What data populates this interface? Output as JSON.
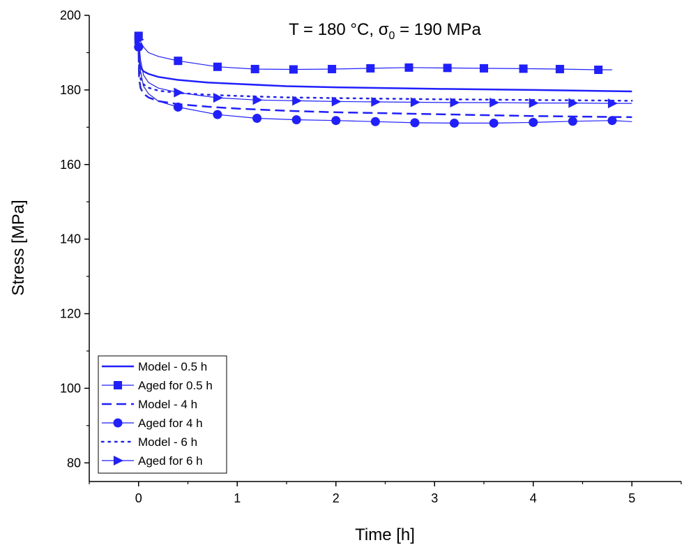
{
  "chart_data": {
    "type": "line",
    "title": {
      "prefix": "T = 180 °C, ",
      "sigma": "σ",
      "subscript": "0",
      "suffix": " = 190 MPa"
    },
    "xlabel": "Time [h]",
    "ylabel": "Stress [MPa]",
    "xlim": [
      -0.5,
      5.5
    ],
    "ylim": [
      75,
      200
    ],
    "xticks": [
      0,
      1,
      2,
      3,
      4,
      5
    ],
    "yticks": [
      80,
      100,
      120,
      140,
      160,
      180,
      200
    ],
    "legend_position": "bottom-left",
    "series_color": "#1f1fff",
    "series": [
      {
        "name": "Model - 0.5 h",
        "kind": "model",
        "style": "solid",
        "points": [
          [
            0,
            194
          ],
          [
            0.005,
            188
          ],
          [
            0.02,
            186
          ],
          [
            0.05,
            185
          ],
          [
            0.1,
            184.3
          ],
          [
            0.2,
            183.5
          ],
          [
            0.4,
            182.7
          ],
          [
            0.7,
            182
          ],
          [
            1,
            181.6
          ],
          [
            1.5,
            181
          ],
          [
            2,
            180.7
          ],
          [
            3,
            180.3
          ],
          [
            4,
            180
          ],
          [
            5,
            179.6
          ]
        ]
      },
      {
        "name": "Aged for 0.5 h",
        "kind": "data",
        "marker": "square",
        "points": [
          [
            0,
            194.5
          ],
          [
            0.02,
            193
          ],
          [
            0.05,
            191.5
          ],
          [
            0.1,
            190
          ],
          [
            0.2,
            189
          ],
          [
            0.4,
            187.8
          ],
          [
            0.8,
            186.2
          ],
          [
            1.18,
            185.6
          ],
          [
            1.57,
            185.5
          ],
          [
            1.96,
            185.6
          ],
          [
            2.35,
            185.8
          ],
          [
            2.74,
            186
          ],
          [
            3.13,
            185.9
          ],
          [
            3.5,
            185.8
          ],
          [
            3.9,
            185.7
          ],
          [
            4.27,
            185.6
          ],
          [
            4.66,
            185.4
          ],
          [
            4.8,
            185.4
          ]
        ],
        "marker_points": [
          [
            0,
            194.5
          ],
          [
            0.4,
            187.8
          ],
          [
            0.8,
            186.2
          ],
          [
            1.18,
            185.6
          ],
          [
            1.57,
            185.5
          ],
          [
            1.96,
            185.6
          ],
          [
            2.35,
            185.8
          ],
          [
            2.74,
            186
          ],
          [
            3.13,
            185.9
          ],
          [
            3.5,
            185.8
          ],
          [
            3.9,
            185.7
          ],
          [
            4.27,
            185.6
          ],
          [
            4.66,
            185.4
          ]
        ]
      },
      {
        "name": "Model - 4 h",
        "kind": "model",
        "style": "dashed",
        "points": [
          [
            0,
            190
          ],
          [
            0.005,
            183
          ],
          [
            0.02,
            180.5
          ],
          [
            0.05,
            179
          ],
          [
            0.1,
            178
          ],
          [
            0.2,
            177
          ],
          [
            0.4,
            176.2
          ],
          [
            0.7,
            175.5
          ],
          [
            1,
            175
          ],
          [
            1.5,
            174.4
          ],
          [
            2,
            174
          ],
          [
            3,
            173.5
          ],
          [
            4,
            173
          ],
          [
            5,
            172.7
          ]
        ]
      },
      {
        "name": "Aged for 4 h",
        "kind": "data",
        "marker": "circle",
        "points": [
          [
            0,
            191.5
          ],
          [
            0.02,
            185
          ],
          [
            0.05,
            181
          ],
          [
            0.1,
            179
          ],
          [
            0.2,
            177
          ],
          [
            0.4,
            175.4
          ],
          [
            0.8,
            173.4
          ],
          [
            1.2,
            172.4
          ],
          [
            1.6,
            172
          ],
          [
            2,
            171.8
          ],
          [
            2.4,
            171.5
          ],
          [
            2.8,
            171.2
          ],
          [
            3.2,
            171.1
          ],
          [
            3.6,
            171.1
          ],
          [
            4,
            171.3
          ],
          [
            4.4,
            171.6
          ],
          [
            4.8,
            171.8
          ],
          [
            5,
            171.5
          ]
        ],
        "marker_points": [
          [
            0,
            191.5
          ],
          [
            0.4,
            175.4
          ],
          [
            0.8,
            173.4
          ],
          [
            1.2,
            172.4
          ],
          [
            1.6,
            172
          ],
          [
            2,
            171.8
          ],
          [
            2.4,
            171.5
          ],
          [
            2.8,
            171.2
          ],
          [
            3.2,
            171.1
          ],
          [
            3.6,
            171.1
          ],
          [
            4,
            171.3
          ],
          [
            4.4,
            171.6
          ],
          [
            4.8,
            171.8
          ]
        ]
      },
      {
        "name": "Model - 6 h",
        "kind": "model",
        "style": "dotted",
        "points": [
          [
            0,
            192
          ],
          [
            0.005,
            185.5
          ],
          [
            0.02,
            183
          ],
          [
            0.05,
            181.5
          ],
          [
            0.1,
            180.6
          ],
          [
            0.2,
            179.8
          ],
          [
            0.4,
            179.2
          ],
          [
            0.7,
            178.7
          ],
          [
            1,
            178.4
          ],
          [
            1.5,
            178
          ],
          [
            2,
            177.8
          ],
          [
            3,
            177.5
          ],
          [
            4,
            177.3
          ],
          [
            5,
            177.1
          ]
        ]
      },
      {
        "name": "Aged for 6 h",
        "kind": "data",
        "marker": "triangle-right",
        "points": [
          [
            0,
            193.5
          ],
          [
            0.02,
            188
          ],
          [
            0.05,
            184
          ],
          [
            0.1,
            182
          ],
          [
            0.2,
            180.5
          ],
          [
            0.4,
            179.3
          ],
          [
            0.8,
            177.9
          ],
          [
            1.2,
            177.3
          ],
          [
            1.6,
            177.1
          ],
          [
            2,
            176.9
          ],
          [
            2.4,
            176.8
          ],
          [
            2.8,
            176.7
          ],
          [
            3.2,
            176.6
          ],
          [
            3.6,
            176.6
          ],
          [
            4,
            176.5
          ],
          [
            4.4,
            176.5
          ],
          [
            4.8,
            176.4
          ],
          [
            5,
            176.4
          ]
        ],
        "marker_points": [
          [
            0,
            193.5
          ],
          [
            0.4,
            179.3
          ],
          [
            0.8,
            177.9
          ],
          [
            1.2,
            177.3
          ],
          [
            1.6,
            177.1
          ],
          [
            2,
            176.9
          ],
          [
            2.4,
            176.8
          ],
          [
            2.8,
            176.7
          ],
          [
            3.2,
            176.6
          ],
          [
            3.6,
            176.6
          ],
          [
            4,
            176.5
          ],
          [
            4.4,
            176.5
          ],
          [
            4.8,
            176.4
          ]
        ]
      }
    ]
  }
}
